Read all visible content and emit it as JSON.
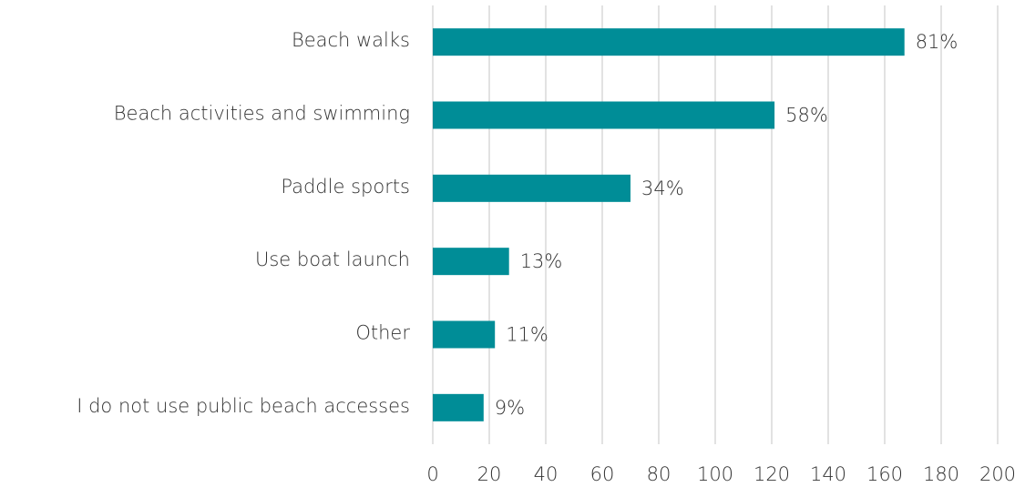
{
  "chart_data": {
    "type": "bar",
    "orientation": "horizontal",
    "categories": [
      "Beach walks",
      "Beach activities and swimming",
      "Paddle sports",
      "Use boat launch",
      "Other",
      "I do not use public beach accesses"
    ],
    "values": [
      167,
      121,
      70,
      27,
      22,
      18
    ],
    "value_labels": [
      "81%",
      "58%",
      "34%",
      "13%",
      "11%",
      "9%"
    ],
    "color": "#008d97",
    "xlim": [
      0,
      200
    ],
    "xticks": [
      0,
      20,
      40,
      60,
      80,
      100,
      120,
      140,
      160,
      180,
      200
    ],
    "grid": true
  }
}
